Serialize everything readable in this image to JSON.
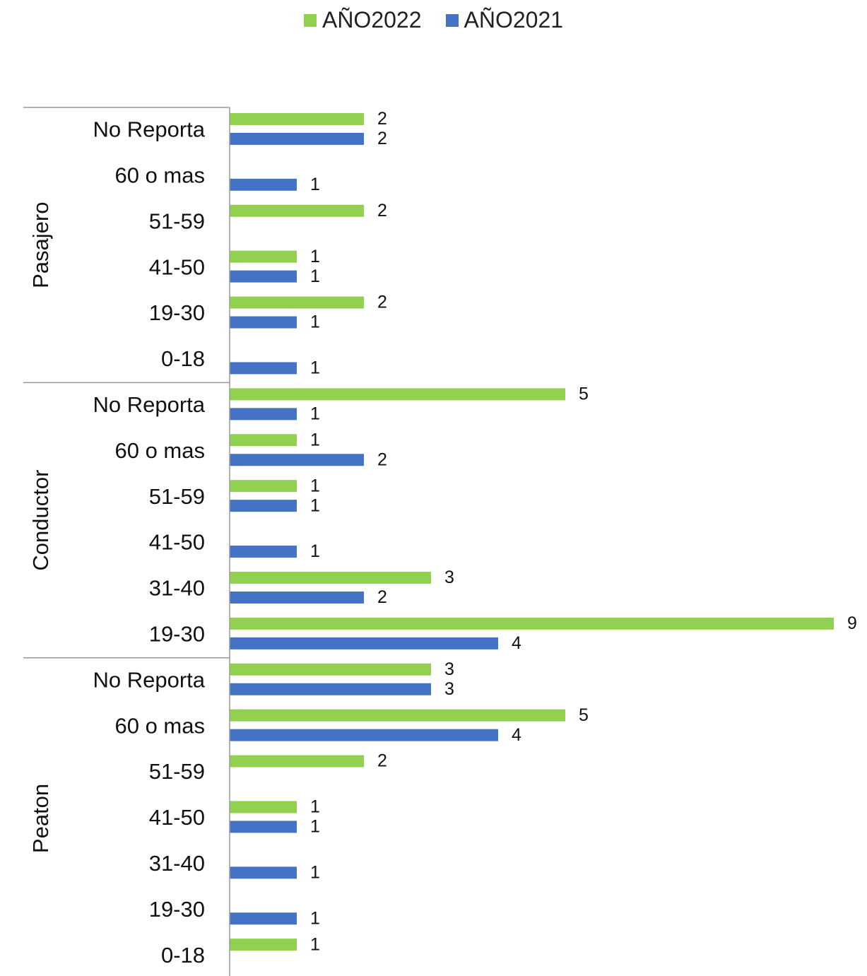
{
  "chart_data": {
    "type": "bar",
    "orientation": "horizontal",
    "title": "",
    "xlabel": "",
    "ylabel": "",
    "legend_position": "top-center",
    "grid": false,
    "xlim": [
      0,
      9
    ],
    "series": [
      {
        "name": "AÑO2022",
        "color": "#92d050"
      },
      {
        "name": "AÑO2021",
        "color": "#4472c4"
      }
    ],
    "groups": [
      {
        "name": "Pasajero",
        "rows": [
          {
            "category": "No Reporta",
            "values": [
              2,
              2
            ]
          },
          {
            "category": "60 o mas",
            "values": [
              null,
              1
            ]
          },
          {
            "category": "51-59",
            "values": [
              2,
              null
            ]
          },
          {
            "category": "41-50",
            "values": [
              1,
              1
            ]
          },
          {
            "category": "19-30",
            "values": [
              2,
              1
            ]
          },
          {
            "category": "0-18",
            "values": [
              null,
              1
            ]
          }
        ]
      },
      {
        "name": "Conductor",
        "rows": [
          {
            "category": "No Reporta",
            "values": [
              5,
              1
            ]
          },
          {
            "category": "60 o mas",
            "values": [
              1,
              2
            ]
          },
          {
            "category": "51-59",
            "values": [
              1,
              1
            ]
          },
          {
            "category": "41-50",
            "values": [
              null,
              1
            ]
          },
          {
            "category": "31-40",
            "values": [
              3,
              2
            ]
          },
          {
            "category": "19-30",
            "values": [
              9,
              4
            ]
          }
        ]
      },
      {
        "name": "Peaton",
        "rows": [
          {
            "category": "No Reporta",
            "values": [
              3,
              3
            ]
          },
          {
            "category": "60 o mas",
            "values": [
              5,
              4
            ]
          },
          {
            "category": "51-59",
            "values": [
              2,
              null
            ]
          },
          {
            "category": "41-50",
            "values": [
              1,
              1
            ]
          },
          {
            "category": "31-40",
            "values": [
              null,
              1
            ]
          },
          {
            "category": "19-30",
            "values": [
              null,
              1
            ]
          },
          {
            "category": "0-18",
            "values": [
              1,
              null
            ]
          }
        ]
      }
    ]
  }
}
